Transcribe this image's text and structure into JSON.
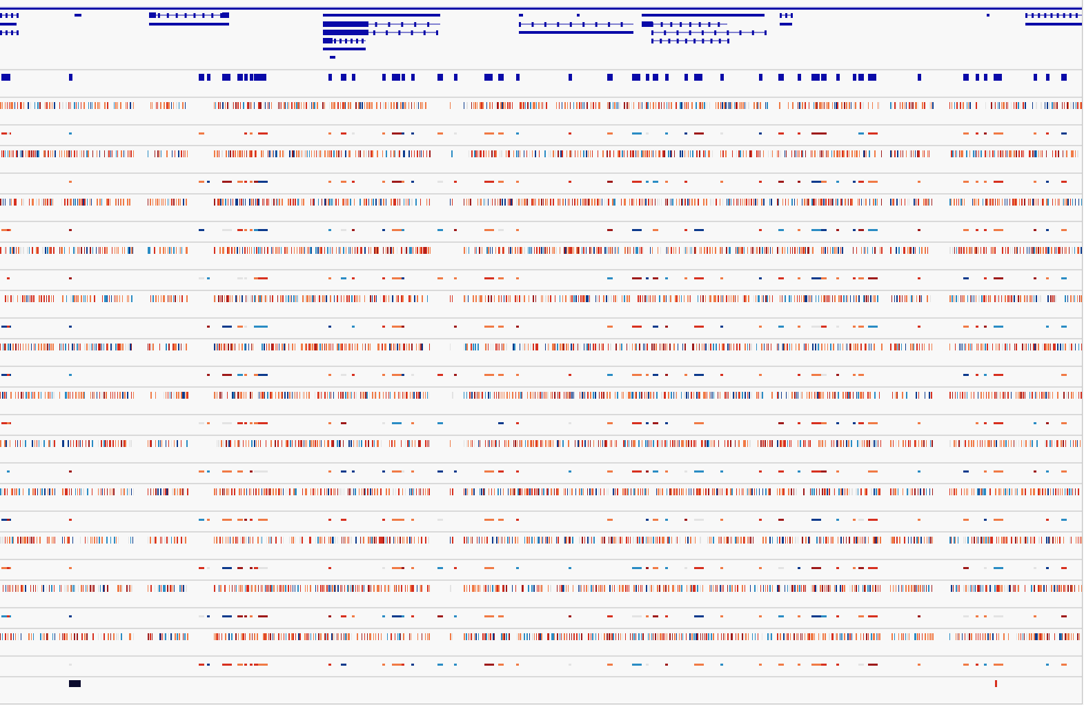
{
  "browser": {
    "type": "genome-browser-view",
    "colors": {
      "background": "#f8f8f8",
      "gene_feature": "#0a0aa8",
      "divider": "#bdbdbd",
      "header_band": "#dcdcf2",
      "marker": "#0b0b2e",
      "heat_low": "#9e1a1a",
      "heat_mid_red": "#d7301f",
      "heat_orange": "#f07a45",
      "heat_neutral": "#e3e3e3",
      "heat_teal": "#2a8cc4",
      "heat_navy": "#0d3a8c"
    },
    "tracks": {
      "gene_annotations": {
        "icon": "gene-model-track",
        "strands": [
          "forward",
          "reverse"
        ]
      },
      "exon_summary": {
        "icon": "exon-block-track"
      },
      "sample_pairs_count": 12,
      "methylation_like_heatmap": {
        "icon": "heatmap-track"
      },
      "summary_bars": {
        "icon": "summary-bar-track"
      },
      "bottom_markers": {
        "icon": "marker-track"
      }
    }
  }
}
